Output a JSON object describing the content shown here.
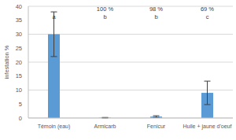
{
  "chart_data": {
    "type": "bar",
    "categories": [
      "Témoin (eau)",
      "Armicarb",
      "Fenicur",
      "Huile + jaune d'oeuf"
    ],
    "values": [
      30,
      0.1,
      0.5,
      9
    ],
    "errors": [
      8,
      0.1,
      0.3,
      4.2
    ],
    "color": "#5b9bd5",
    "ylabel": "infestation %",
    "ylim": [
      0,
      40
    ],
    "yticks": [
      0,
      5,
      10,
      15,
      20,
      25,
      30,
      35,
      40
    ],
    "grid": true,
    "letters": [
      "a",
      "b",
      "b",
      "c"
    ],
    "efficacy_labels": [
      null,
      "100 %",
      "98 %",
      "69 %"
    ]
  }
}
